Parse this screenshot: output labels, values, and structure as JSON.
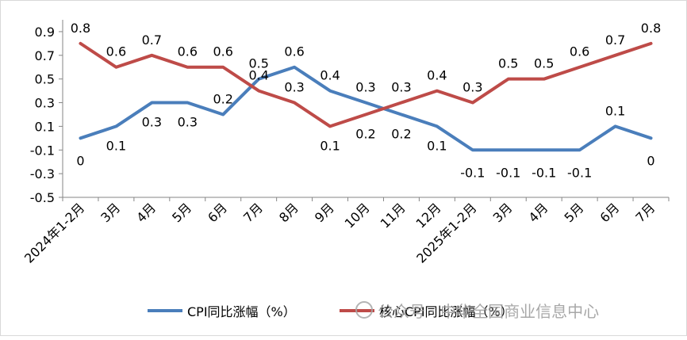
{
  "chart_data": {
    "type": "line",
    "categories": [
      "2024年1-2月",
      "3月",
      "4月",
      "5月",
      "6月",
      "7月",
      "8月",
      "9月",
      "10月",
      "11月",
      "12月",
      "2025年1-2月",
      "3月",
      "4月",
      "5月",
      "6月",
      "7月"
    ],
    "ylim": [
      -0.5,
      1.0
    ],
    "yticks": [
      "-0.5",
      "-0.3",
      "-0.1",
      "0.1",
      "0.3",
      "0.5",
      "0.7",
      "0.9"
    ],
    "ytick_values": [
      -0.5,
      -0.3,
      -0.1,
      0.1,
      0.3,
      0.5,
      0.7,
      0.9
    ],
    "grid": false,
    "legend_position": "bottom",
    "series": [
      {
        "name": "CPI同比涨幅（%）",
        "color": "#4a7ebb",
        "values": [
          0,
          0.1,
          0.3,
          0.3,
          0.2,
          0.5,
          0.6,
          0.4,
          0.3,
          0.2,
          0.1,
          -0.1,
          -0.1,
          -0.1,
          -0.1,
          0.1,
          0
        ],
        "labels": [
          "0",
          "0.1",
          "0.3",
          "0.3",
          "0.2",
          "0.5",
          "0.6",
          "0.4",
          "0.3",
          "0.2",
          "0.1",
          "-0.1",
          "-0.1",
          "-0.1",
          "-0.1",
          "0.1",
          "0"
        ]
      },
      {
        "name": "核心CPI同比涨幅（%）",
        "color": "#be4b48",
        "values": [
          0.8,
          0.6,
          0.7,
          0.6,
          0.6,
          0.4,
          0.3,
          0.1,
          0.2,
          0.3,
          0.4,
          0.3,
          0.5,
          0.5,
          0.6,
          0.7,
          0.8
        ],
        "labels": [
          "0.8",
          "0.6",
          "0.7",
          "0.6",
          "0.6",
          "0.4",
          "0.3",
          "0.1",
          "0.2",
          "0.3",
          "0.4",
          "0.3",
          "0.5",
          "0.5",
          "0.6",
          "0.7",
          "0.8"
        ]
      }
    ]
  },
  "legend": {
    "cpi_label": "CPI同比涨幅（%）",
    "core_label": "核心CPI同比涨幅（%）"
  },
  "watermark": {
    "text": "公众号 · 中华全国商业信息中心"
  }
}
